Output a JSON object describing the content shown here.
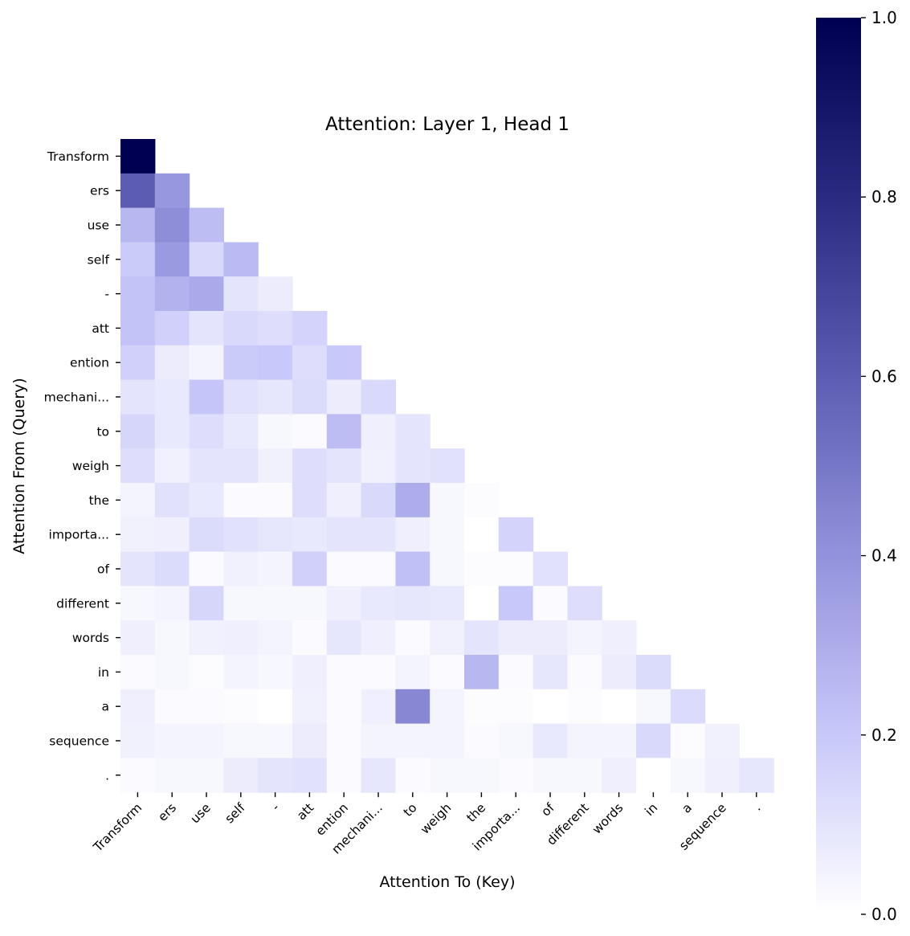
{
  "chart_data": {
    "type": "heatmap",
    "title": "Attention: Layer 1, Head 1",
    "xlabel": "Attention To (Key)",
    "ylabel": "Attention From (Query)",
    "x_tick_labels": [
      "Transform",
      "ers",
      "use",
      "self",
      "-",
      "att",
      "ention",
      "mechani...",
      "to",
      "weigh",
      "the",
      "importa...",
      "of",
      "different",
      "words",
      "in",
      "a",
      "sequence",
      "."
    ],
    "y_tick_labels": [
      "Transform",
      "ers",
      "use",
      "self",
      "-",
      "att",
      "ention",
      "mechani...",
      "to",
      "weigh",
      "the",
      "importa...",
      "of",
      "different",
      "words",
      "in",
      "a",
      "sequence",
      "."
    ],
    "mask": "upper-triangle (causal)",
    "matrix": [
      [
        1.0
      ],
      [
        0.6,
        0.38
      ],
      [
        0.26,
        0.42,
        0.24
      ],
      [
        0.19,
        0.37,
        0.14,
        0.25
      ],
      [
        0.22,
        0.28,
        0.31,
        0.1,
        0.07
      ],
      [
        0.22,
        0.17,
        0.1,
        0.14,
        0.12,
        0.16
      ],
      [
        0.17,
        0.07,
        0.04,
        0.19,
        0.2,
        0.12,
        0.2
      ],
      [
        0.1,
        0.08,
        0.21,
        0.11,
        0.09,
        0.13,
        0.07,
        0.14
      ],
      [
        0.15,
        0.08,
        0.12,
        0.08,
        0.03,
        0.02,
        0.24,
        0.06,
        0.1
      ],
      [
        0.12,
        0.05,
        0.1,
        0.1,
        0.05,
        0.12,
        0.1,
        0.05,
        0.1,
        0.11
      ],
      [
        0.04,
        0.11,
        0.08,
        0.02,
        0.02,
        0.12,
        0.06,
        0.14,
        0.3,
        0.03,
        0.01
      ],
      [
        0.05,
        0.06,
        0.13,
        0.11,
        0.09,
        0.08,
        0.1,
        0.1,
        0.06,
        0.03,
        0.0,
        0.16
      ],
      [
        0.1,
        0.13,
        0.02,
        0.05,
        0.04,
        0.17,
        0.02,
        0.02,
        0.23,
        0.03,
        0.01,
        0.01,
        0.11
      ],
      [
        0.03,
        0.04,
        0.15,
        0.03,
        0.03,
        0.03,
        0.06,
        0.08,
        0.09,
        0.08,
        0.0,
        0.2,
        0.02,
        0.12
      ],
      [
        0.06,
        0.03,
        0.05,
        0.06,
        0.04,
        0.02,
        0.09,
        0.06,
        0.02,
        0.05,
        0.1,
        0.07,
        0.07,
        0.04,
        0.06
      ],
      [
        0.02,
        0.03,
        0.01,
        0.04,
        0.03,
        0.06,
        0.02,
        0.02,
        0.04,
        0.02,
        0.26,
        0.02,
        0.09,
        0.02,
        0.07,
        0.13
      ],
      [
        0.06,
        0.02,
        0.02,
        0.01,
        0.0,
        0.05,
        0.02,
        0.06,
        0.44,
        0.04,
        0.01,
        0.01,
        0.0,
        0.01,
        0.0,
        0.03,
        0.13
      ],
      [
        0.05,
        0.04,
        0.04,
        0.03,
        0.03,
        0.07,
        0.02,
        0.04,
        0.04,
        0.04,
        0.02,
        0.03,
        0.08,
        0.04,
        0.04,
        0.14,
        0.01,
        0.05
      ],
      [
        0.02,
        0.03,
        0.03,
        0.07,
        0.1,
        0.11,
        0.02,
        0.09,
        0.02,
        0.03,
        0.03,
        0.02,
        0.03,
        0.03,
        0.06,
        0.0,
        0.03,
        0.06,
        0.09
      ]
    ],
    "colorbar": {
      "ticks": [
        0.0,
        0.2,
        0.4,
        0.6,
        0.8,
        1.0
      ],
      "tick_labels": [
        "0.0",
        "0.2",
        "0.4",
        "0.6",
        "0.8",
        "1.0"
      ],
      "range": [
        0,
        1
      ],
      "colors": [
        "#ffffff",
        "#c8c8fa",
        "#9292dc",
        "#5c5cb2",
        "#2a2a80",
        "#000050"
      ]
    }
  }
}
